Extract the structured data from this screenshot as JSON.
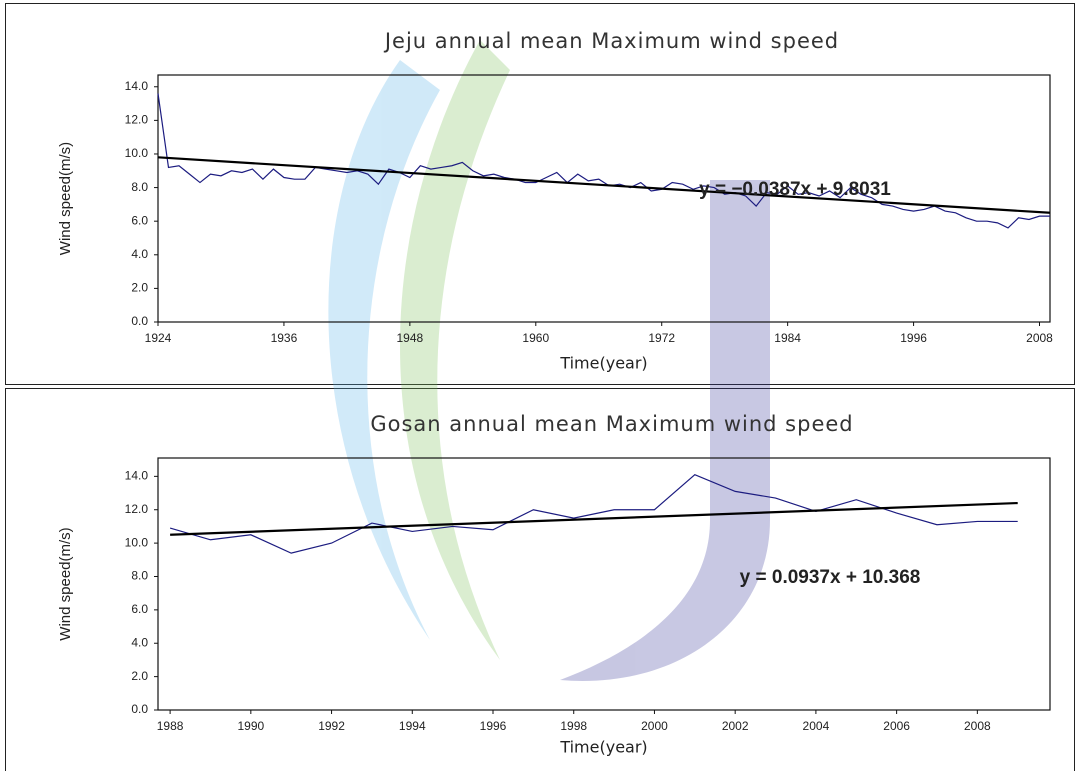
{
  "chart_data": [
    {
      "type": "line",
      "title": "Jeju annual mean Maximum wind speed",
      "x_label": "Time(year)",
      "y_label": "Wind speed(m/s)",
      "annotation": "y = −0.0387x + 9.8031",
      "color": "#1c1c80",
      "x": [
        1924,
        1925,
        1926,
        1927,
        1928,
        1929,
        1930,
        1931,
        1932,
        1933,
        1934,
        1935,
        1936,
        1937,
        1938,
        1939,
        1940,
        1941,
        1942,
        1943,
        1944,
        1945,
        1946,
        1947,
        1948,
        1949,
        1950,
        1951,
        1952,
        1953,
        1954,
        1955,
        1956,
        1957,
        1958,
        1959,
        1960,
        1961,
        1962,
        1963,
        1964,
        1965,
        1966,
        1967,
        1968,
        1969,
        1970,
        1971,
        1972,
        1973,
        1974,
        1975,
        1976,
        1977,
        1978,
        1979,
        1980,
        1981,
        1982,
        1983,
        1984,
        1985,
        1986,
        1987,
        1988,
        1989,
        1990,
        1991,
        1992,
        1993,
        1994,
        1995,
        1996,
        1997,
        1998,
        1999,
        2000,
        2001,
        2002,
        2003,
        2004,
        2005,
        2006,
        2007,
        2008,
        2009
      ],
      "values": [
        13.6,
        9.2,
        9.3,
        8.8,
        8.3,
        8.8,
        8.7,
        9.0,
        8.9,
        9.1,
        8.5,
        9.1,
        8.6,
        8.5,
        8.5,
        9.2,
        9.1,
        9.0,
        8.9,
        9.0,
        8.8,
        8.2,
        9.1,
        8.9,
        8.6,
        9.3,
        9.1,
        9.2,
        9.3,
        9.5,
        9.0,
        8.7,
        8.8,
        8.6,
        8.5,
        8.3,
        8.3,
        8.6,
        8.9,
        8.3,
        8.8,
        8.4,
        8.5,
        8.1,
        8.2,
        8.0,
        8.3,
        7.8,
        7.9,
        8.3,
        8.2,
        7.9,
        8.1,
        8.0,
        7.6,
        7.7,
        7.5,
        6.9,
        7.7,
        7.6,
        8.1,
        7.6,
        7.7,
        7.5,
        7.8,
        7.4,
        8.0,
        7.6,
        7.4,
        7.0,
        6.9,
        6.7,
        6.6,
        6.7,
        6.9,
        6.6,
        6.5,
        6.2,
        6.0,
        6.0,
        5.9,
        5.6,
        6.2,
        6.1,
        6.3,
        6.3
      ],
      "trendline": {
        "x": [
          1924,
          2009
        ],
        "values": [
          9.8,
          6.5
        ],
        "color": "#000000"
      },
      "xlim": [
        1924,
        2009
      ],
      "xticks": [
        1924,
        1936,
        1948,
        1960,
        1972,
        1984,
        1996,
        2008
      ],
      "ylim": [
        0,
        14.7
      ],
      "yticks": [
        {
          "value": 0,
          "label": "0.0"
        },
        {
          "value": 2,
          "label": "2.0"
        },
        {
          "value": 4,
          "label": "4.0"
        },
        {
          "value": 6,
          "label": "6.0"
        },
        {
          "value": 8,
          "label": "8.0"
        },
        {
          "value": 10,
          "label": "10.0"
        },
        {
          "value": 12,
          "label": "12.0"
        },
        {
          "value": 14,
          "label": "14.0"
        }
      ],
      "grid": false
    },
    {
      "type": "line",
      "title": "Gosan annual mean Maximum wind speed",
      "x_label": "Time(year)",
      "y_label": "Wind speed(m/s)",
      "annotation": "y = 0.0937x + 10.368",
      "color": "#1c1c80",
      "x": [
        1988,
        1989,
        1990,
        1991,
        1992,
        1993,
        1994,
        1995,
        1996,
        1997,
        1998,
        1999,
        2000,
        2001,
        2002,
        2003,
        2004,
        2005,
        2006,
        2007,
        2008,
        2009
      ],
      "values": [
        10.9,
        10.2,
        10.5,
        9.4,
        10.0,
        11.2,
        10.7,
        11.0,
        10.8,
        12.0,
        11.5,
        12.0,
        12.0,
        14.1,
        13.1,
        12.7,
        11.9,
        12.6,
        11.8,
        11.1,
        11.3,
        11.3
      ],
      "trendline": {
        "x": [
          1988,
          2009
        ],
        "values": [
          10.5,
          12.4
        ],
        "color": "#000000"
      },
      "xlim": [
        1987.7,
        2009.8
      ],
      "xticks": [
        1988,
        1990,
        1992,
        1994,
        1996,
        1998,
        2000,
        2002,
        2004,
        2006,
        2008
      ],
      "ylim": [
        0,
        15.1
      ],
      "yticks": [
        {
          "value": 0,
          "label": "0.0"
        },
        {
          "value": 2,
          "label": "2.0"
        },
        {
          "value": 4,
          "label": "4.0"
        },
        {
          "value": 6,
          "label": "6.0"
        },
        {
          "value": 8,
          "label": "8.0"
        },
        {
          "value": 10,
          "label": "10.0"
        },
        {
          "value": 12,
          "label": "12.0"
        },
        {
          "value": 14,
          "label": "14.0"
        }
      ],
      "grid": false
    }
  ]
}
